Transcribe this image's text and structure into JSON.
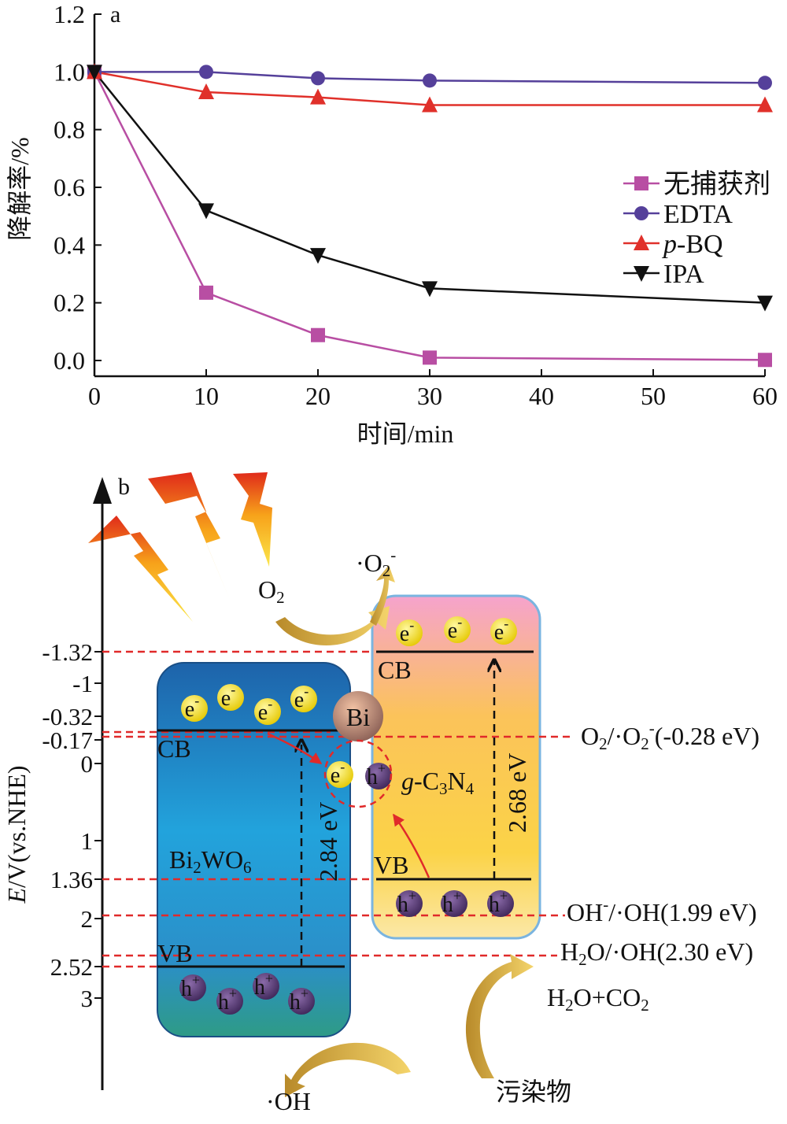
{
  "chart_data": {
    "type": "line",
    "panel_label": "a",
    "xlabel": "时间/min",
    "ylabel": "降解率/%",
    "xlim": [
      0,
      60
    ],
    "ylim": [
      0,
      1.2
    ],
    "x_ticks": [
      "0",
      "10",
      "20",
      "30",
      "40",
      "50",
      "60"
    ],
    "y_ticks": [
      "0.0",
      "0.2",
      "0.4",
      "0.6",
      "0.8",
      "1.0",
      "1.2"
    ],
    "legend_position": "right",
    "x": [
      0,
      10,
      20,
      30,
      60
    ],
    "series": [
      {
        "name": "无捕获剂",
        "name_prefix": "",
        "name_suffix": "无捕获剂",
        "marker": "square",
        "color": "#b84ea3",
        "values": [
          1.0,
          0.235,
          0.088,
          0.01,
          0.002
        ]
      },
      {
        "name": "EDTA",
        "name_prefix": "",
        "name_suffix": "EDTA",
        "marker": "circle",
        "color": "#55409a",
        "values": [
          1.0,
          1.0,
          0.978,
          0.97,
          0.962
        ]
      },
      {
        "name": "p-BQ",
        "name_prefix": "p",
        "name_suffix": "-BQ",
        "marker": "triangle-up",
        "color": "#e0302a",
        "values": [
          1.0,
          0.93,
          0.912,
          0.885,
          0.885
        ]
      },
      {
        "name": "IPA",
        "name_prefix": "",
        "name_suffix": "IPA",
        "marker": "triangle-down",
        "color": "#111111",
        "values": [
          1.0,
          0.52,
          0.365,
          0.25,
          0.2
        ]
      }
    ]
  },
  "diagram": {
    "panel_label": "b",
    "axis_label_italic": "E",
    "axis_label_rest": "/V(vs.NHE)",
    "ticks": [
      "-1.32",
      "-1",
      "-0.32",
      "-0.17",
      "0",
      "1",
      "1.36",
      "2",
      "2.52",
      "3"
    ],
    "bi2wo6": {
      "name_main": "Bi",
      "sub1": "2",
      "mid": "WO",
      "sub2": "6",
      "cb": "CB",
      "vb": "VB",
      "gap": "2.84 eV"
    },
    "gc3n4": {
      "prefix": "g",
      "main1": "-C",
      "sub1": "3",
      "main2": "N",
      "sub2": "4",
      "cb": "CB",
      "vb": "VB",
      "gap": "2.68 eV"
    },
    "bi_label": "Bi",
    "electron": "e",
    "electron_sup": "-",
    "hole": "h",
    "hole_sup": "+",
    "o2": "O",
    "o2_sub": "2",
    "o2_radical": "·O",
    "o2_radical_sub": "2",
    "o2_radical_sup": "-",
    "oh_radical": "·OH",
    "pollutant": "污染物",
    "products": {
      "a": "H",
      "a_sub": "2",
      "b": "O+CO",
      "b_sub": "2"
    },
    "potentials": {
      "o2": {
        "a": "O",
        "a_sub": "2",
        "b": "/·O",
        "b_sub": "2",
        "b_sup": "-",
        "c": "(-0.28 eV)"
      },
      "oh": {
        "a": "OH",
        "a_sup": "-",
        "b": "/·OH(1.99 eV)"
      },
      "h2o": {
        "a": "H",
        "a_sub": "2",
        "b": "O/·OH(2.30 eV)"
      }
    },
    "colors": {
      "bi2wo6_top": "#1f6fb8",
      "bi2wo6_bottom": "#2f9a8a",
      "gc3n4_top": "#f4a6c8",
      "gc3n4_bottom": "#fbd24a",
      "electron": "#f5e12a",
      "hole": "#5a3a78",
      "dash": "#e02a2a"
    }
  }
}
